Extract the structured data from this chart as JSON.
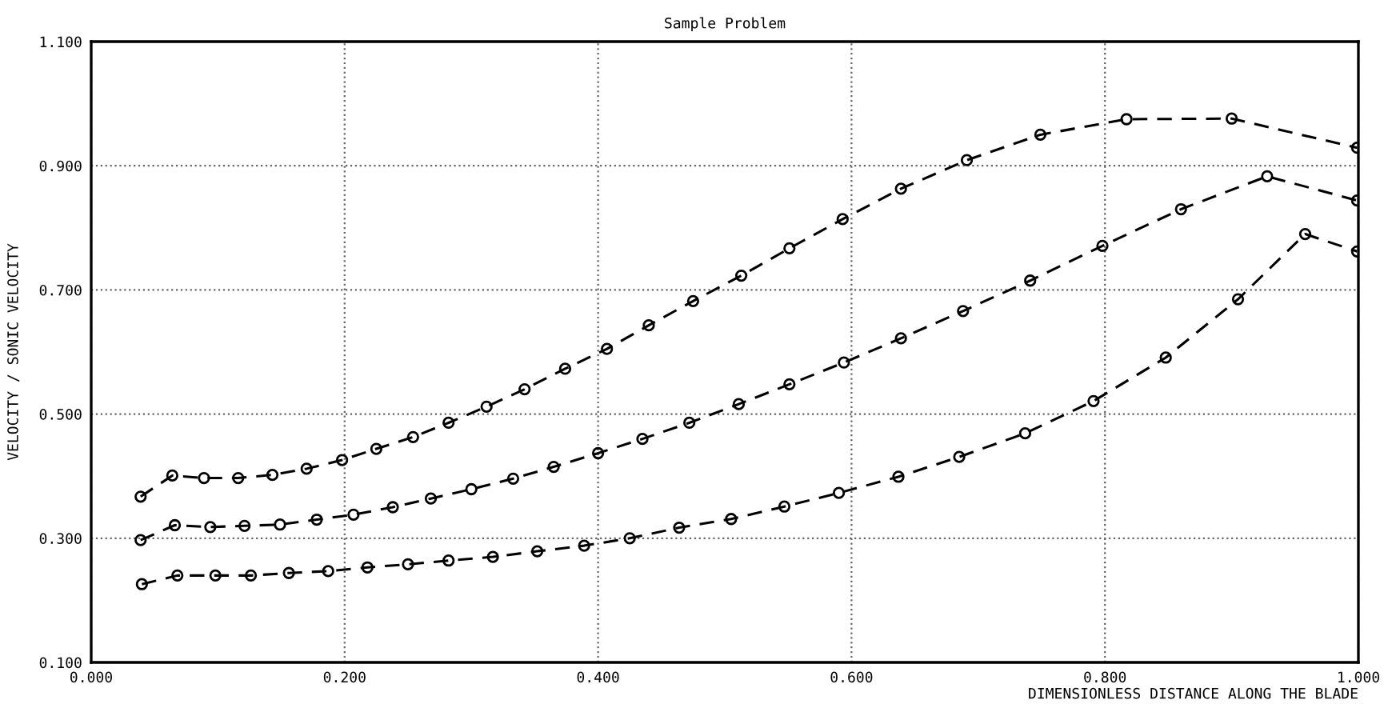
{
  "chart_data": {
    "type": "line",
    "title": "Sample Problem",
    "xlabel": "DIMENSIONLESS DISTANCE ALONG THE BLADE",
    "ylabel": "VELOCITY / SONIC VELOCITY",
    "xlim": [
      0,
      1
    ],
    "ylim": [
      0.1,
      1.1
    ],
    "xticks": [
      {
        "value": 0,
        "label": "0.000"
      },
      {
        "value": 0.2,
        "label": "0.200"
      },
      {
        "value": 0.4,
        "label": "0.400"
      },
      {
        "value": 0.6,
        "label": "0.600"
      },
      {
        "value": 0.8,
        "label": "0.800"
      },
      {
        "value": 1.0,
        "label": "1.000"
      }
    ],
    "yticks": [
      {
        "value": 0.1,
        "label": "0.100"
      },
      {
        "value": 0.3,
        "label": "0.300"
      },
      {
        "value": 0.5,
        "label": "0.500"
      },
      {
        "value": 0.7,
        "label": "0.700"
      },
      {
        "value": 0.9,
        "label": "0.900"
      },
      {
        "value": 1.1,
        "label": "1.100"
      }
    ],
    "grid": true,
    "marker": "circle",
    "line_style": "dashed",
    "legend": false,
    "series": [
      {
        "color": "#000000",
        "x": [
          0.039,
          0.064,
          0.089,
          0.116,
          0.143,
          0.17,
          0.198,
          0.225,
          0.254,
          0.282,
          0.312,
          0.342,
          0.374,
          0.407,
          0.44,
          0.475,
          0.513,
          0.551,
          0.593,
          0.639,
          0.691,
          0.749,
          0.817,
          0.9,
          0.999
        ],
        "values": [
          0.367,
          0.401,
          0.397,
          0.397,
          0.402,
          0.412,
          0.426,
          0.444,
          0.463,
          0.486,
          0.512,
          0.54,
          0.573,
          0.605,
          0.643,
          0.682,
          0.723,
          0.767,
          0.814,
          0.863,
          0.909,
          0.95,
          0.975,
          0.976,
          0.929
        ]
      },
      {
        "color": "#000000",
        "x": [
          0.039,
          0.066,
          0.094,
          0.121,
          0.149,
          0.178,
          0.207,
          0.238,
          0.268,
          0.3,
          0.333,
          0.365,
          0.4,
          0.435,
          0.472,
          0.511,
          0.551,
          0.594,
          0.639,
          0.688,
          0.741,
          0.798,
          0.86,
          0.928,
          0.999
        ],
        "values": [
          0.297,
          0.321,
          0.318,
          0.32,
          0.322,
          0.33,
          0.338,
          0.35,
          0.364,
          0.379,
          0.396,
          0.415,
          0.437,
          0.46,
          0.486,
          0.516,
          0.548,
          0.583,
          0.622,
          0.666,
          0.715,
          0.771,
          0.83,
          0.883,
          0.844
        ]
      },
      {
        "color": "#000000",
        "x": [
          0.04,
          0.068,
          0.098,
          0.126,
          0.156,
          0.187,
          0.218,
          0.25,
          0.282,
          0.317,
          0.352,
          0.389,
          0.425,
          0.464,
          0.505,
          0.547,
          0.59,
          0.637,
          0.685,
          0.737,
          0.791,
          0.848,
          0.905,
          0.958,
          0.999
        ],
        "values": [
          0.226,
          0.24,
          0.24,
          0.24,
          0.244,
          0.247,
          0.253,
          0.258,
          0.264,
          0.27,
          0.279,
          0.288,
          0.3,
          0.317,
          0.331,
          0.351,
          0.373,
          0.399,
          0.431,
          0.469,
          0.521,
          0.591,
          0.685,
          0.79,
          0.762
        ]
      }
    ]
  }
}
